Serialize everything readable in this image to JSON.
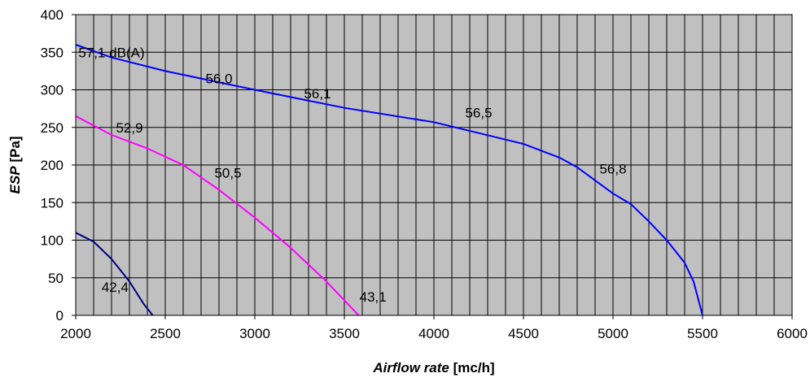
{
  "chart_data": {
    "type": "line",
    "title": "",
    "xlabel": {
      "italic": "Airflow rate",
      "rest": " [mc/h]"
    },
    "ylabel": {
      "italic": "ESP",
      "rest": " [Pa]"
    },
    "xlim": [
      2000,
      6000
    ],
    "ylim": [
      0,
      400
    ],
    "x_ticks": [
      2000,
      2500,
      3000,
      3500,
      4000,
      4500,
      5000,
      5500,
      6000
    ],
    "y_ticks": [
      0,
      50,
      100,
      150,
      200,
      250,
      300,
      350,
      400
    ],
    "x_minor_step": 100,
    "y_major_step": 50,
    "grid": true,
    "colors": {
      "plot_bg": "#c0c0c0",
      "grid": "#000000"
    },
    "series": [
      {
        "color": "#0000ff",
        "points": [
          [
            2000,
            360
          ],
          [
            2200,
            343
          ],
          [
            2500,
            325
          ],
          [
            3000,
            300
          ],
          [
            3500,
            276
          ],
          [
            4000,
            257
          ],
          [
            4500,
            228
          ],
          [
            4700,
            210
          ],
          [
            4800,
            197
          ],
          [
            5000,
            162
          ],
          [
            5100,
            148
          ],
          [
            5200,
            125
          ],
          [
            5300,
            100
          ],
          [
            5400,
            70
          ],
          [
            5450,
            45
          ],
          [
            5500,
            0
          ]
        ]
      },
      {
        "color": "#ff00ff",
        "points": [
          [
            2000,
            265
          ],
          [
            2200,
            240
          ],
          [
            2400,
            222
          ],
          [
            2600,
            200
          ],
          [
            2800,
            167
          ],
          [
            3000,
            130
          ],
          [
            3200,
            90
          ],
          [
            3400,
            45
          ],
          [
            3500,
            20
          ],
          [
            3580,
            0
          ]
        ]
      },
      {
        "color": "#000080",
        "points": [
          [
            2000,
            110
          ],
          [
            2100,
            98
          ],
          [
            2200,
            75
          ],
          [
            2300,
            45
          ],
          [
            2380,
            15
          ],
          [
            2430,
            0
          ]
        ]
      }
    ],
    "annotations": [
      {
        "text": "57,1 dB(A)",
        "x": 2200,
        "y": 350
      },
      {
        "text": "56,0",
        "x": 2800,
        "y": 315
      },
      {
        "text": "56,1",
        "x": 3350,
        "y": 295
      },
      {
        "text": "56,5",
        "x": 4250,
        "y": 270
      },
      {
        "text": "56,8",
        "x": 5000,
        "y": 195
      },
      {
        "text": "52,9",
        "x": 2300,
        "y": 250
      },
      {
        "text": "50,5",
        "x": 2850,
        "y": 190
      },
      {
        "text": "42,4",
        "x": 2220,
        "y": 38
      },
      {
        "text": "43,1",
        "x": 3660,
        "y": 25
      }
    ]
  }
}
